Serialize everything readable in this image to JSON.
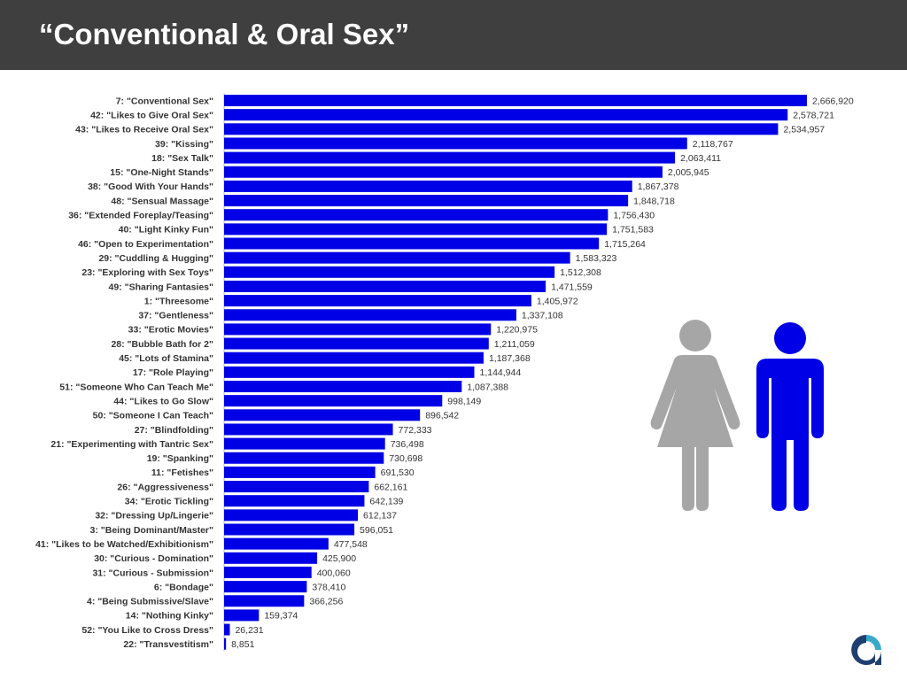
{
  "title": "“Conventional & Oral Sex”",
  "colors": {
    "header_bg": "#3f3f3f",
    "bar": "#0000e6",
    "female_figure": "#a6a6a6",
    "male_figure": "#0000e6",
    "logo_dark": "#1f3f6f",
    "logo_light": "#39a9c9"
  },
  "icons": [
    "female-figure-icon",
    "male-figure-icon",
    "brand-logo-icon"
  ],
  "chart_data": {
    "type": "bar",
    "orientation": "horizontal",
    "categories": [
      "7: \"Conventional Sex\"",
      "42: \"Likes to Give Oral Sex\"",
      "43: \"Likes to Receive Oral Sex\"",
      "39: \"Kissing\"",
      "18: \"Sex Talk\"",
      "15: \"One-Night Stands\"",
      "38: \"Good With Your Hands\"",
      "48: \"Sensual Massage\"",
      "36: \"Extended Foreplay/Teasing\"",
      "40: \"Light Kinky Fun\"",
      "46: \"Open to Experimentation\"",
      "29: \"Cuddling & Hugging\"",
      "23: \"Exploring with Sex Toys\"",
      "49: \"Sharing Fantasies\"",
      "1: \"Threesome\"",
      "37: \"Gentleness\"",
      "33: \"Erotic Movies\"",
      "28: \"Bubble Bath for 2\"",
      "45: \"Lots of Stamina\"",
      "17: \"Role Playing\"",
      "51: \"Someone Who Can Teach Me\"",
      "44: \"Likes to Go Slow\"",
      "50: \"Someone I Can Teach\"",
      "27: \"Blindfolding\"",
      "21: \"Experimenting with Tantric Sex\"",
      "19: \"Spanking\"",
      "11: \"Fetishes\"",
      "26: \"Aggressiveness\"",
      "34: \"Erotic Tickling\"",
      "32: \"Dressing Up/Lingerie\"",
      "3: \"Being Dominant/Master\"",
      "41: \"Likes to be Watched/Exhibitionism\"",
      "30: \"Curious - Domination\"",
      "31: \"Curious - Submission\"",
      "6: \"Bondage\"",
      "4: \"Being Submissive/Slave\"",
      "14: \"Nothing Kinky\"",
      "52: \"You Like to Cross Dress\"",
      "22: \"Transvestitism\""
    ],
    "values": [
      2666920,
      2578721,
      2534957,
      2118767,
      2063411,
      2005945,
      1867378,
      1848718,
      1756430,
      1751583,
      1715264,
      1583323,
      1512308,
      1471559,
      1405972,
      1337108,
      1220975,
      1211059,
      1187368,
      1144944,
      1087388,
      998149,
      896542,
      772333,
      736498,
      730698,
      691530,
      662161,
      642139,
      612137,
      596051,
      477548,
      425900,
      400060,
      378410,
      366256,
      159374,
      26231,
      8851
    ],
    "value_labels": [
      "2,666,920",
      "2,578,721",
      "2,534,957",
      "2,118,767",
      "2,063,411",
      "2,005,945",
      "1,867,378",
      "1,848,718",
      "1,756,430",
      "1,751,583",
      "1,715,264",
      "1,583,323",
      "1,512,308",
      "1,471,559",
      "1,405,972",
      "1,337,108",
      "1,220,975",
      "1,211,059",
      "1,187,368",
      "1,144,944",
      "1,087,388",
      "998,149",
      "896,542",
      "772,333",
      "736,498",
      "730,698",
      "691,530",
      "662,161",
      "642,139",
      "612,137",
      "596,051",
      "477,548",
      "425,900",
      "400,060",
      "378,410",
      "366,256",
      "159,374",
      "26,231",
      "8,851"
    ],
    "xlim": [
      0,
      2666920
    ],
    "grid": false,
    "legend": "none",
    "axis_lines": "left"
  }
}
